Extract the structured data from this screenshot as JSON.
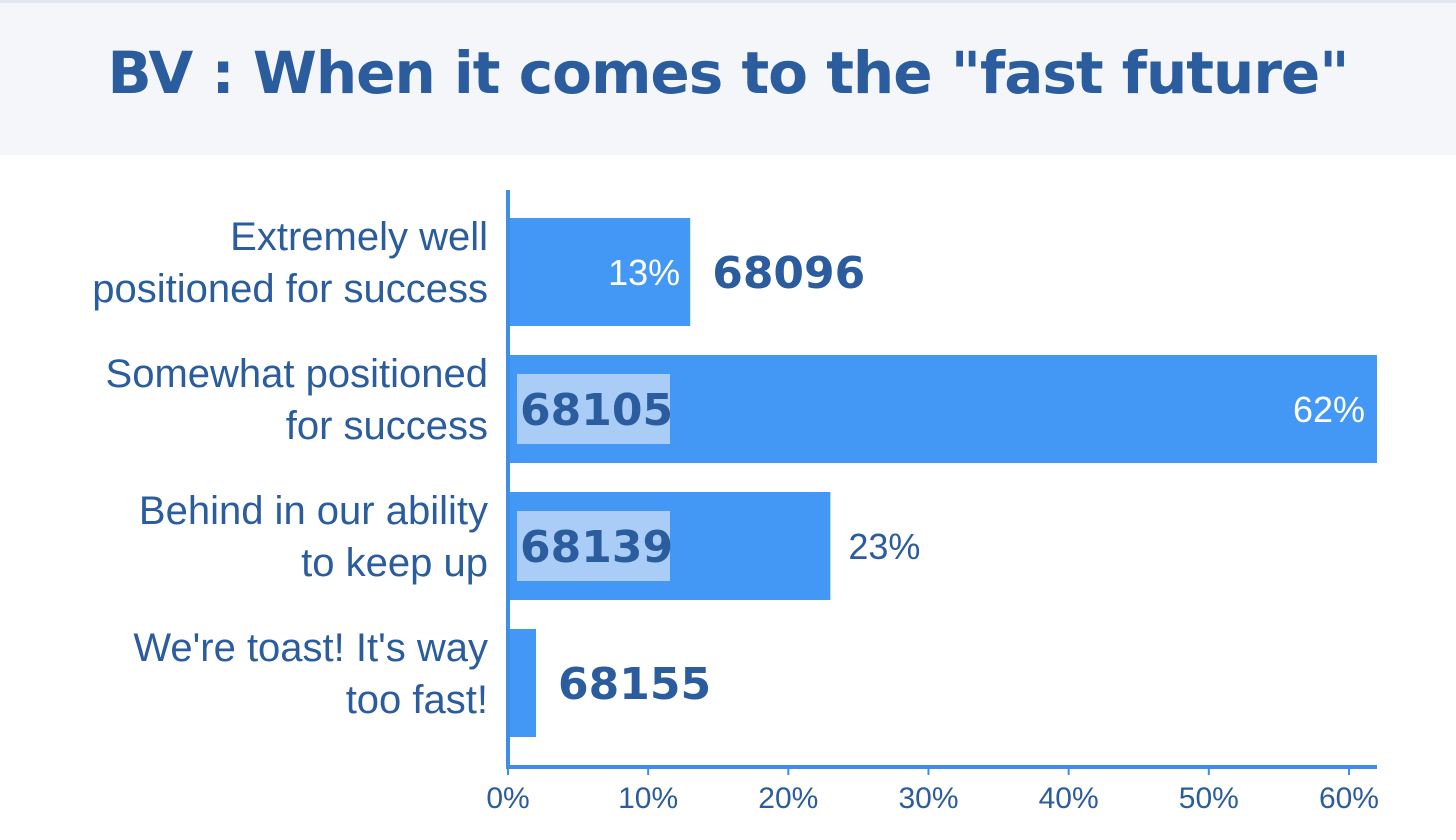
{
  "title": "BV : When it comes to the \"fast future\"",
  "colors": {
    "bar": "#4397f5",
    "axis": "#3d8ee6",
    "label": "#2a5c9e",
    "label_on_bar": "#ffffff",
    "count_box": "#a9cdf6",
    "title_bg": "#f4f6fa"
  },
  "chart_data": {
    "type": "bar",
    "orientation": "horizontal",
    "title": "BV : When it comes to the \"fast future\"",
    "categories": [
      [
        "Extremely well",
        "positioned for success"
      ],
      [
        "Somewhat positioned",
        "for success"
      ],
      [
        "Behind in our ability",
        "to keep up"
      ],
      [
        "We're toast! It's way",
        "too fast!"
      ]
    ],
    "values": [
      13,
      62,
      23,
      2
    ],
    "value_labels": [
      "13%",
      "62%",
      "23%",
      ""
    ],
    "counts": [
      "68096",
      "68105",
      "68139",
      "68155"
    ],
    "xlim": [
      0,
      62
    ],
    "xticks": [
      0,
      10,
      20,
      30,
      40,
      50,
      60
    ],
    "xtick_labels": [
      "0%",
      "10%",
      "20%",
      "30%",
      "40%",
      "50%",
      "60%"
    ],
    "xlabel": "",
    "ylabel": "",
    "grid": false,
    "legend": "none"
  }
}
